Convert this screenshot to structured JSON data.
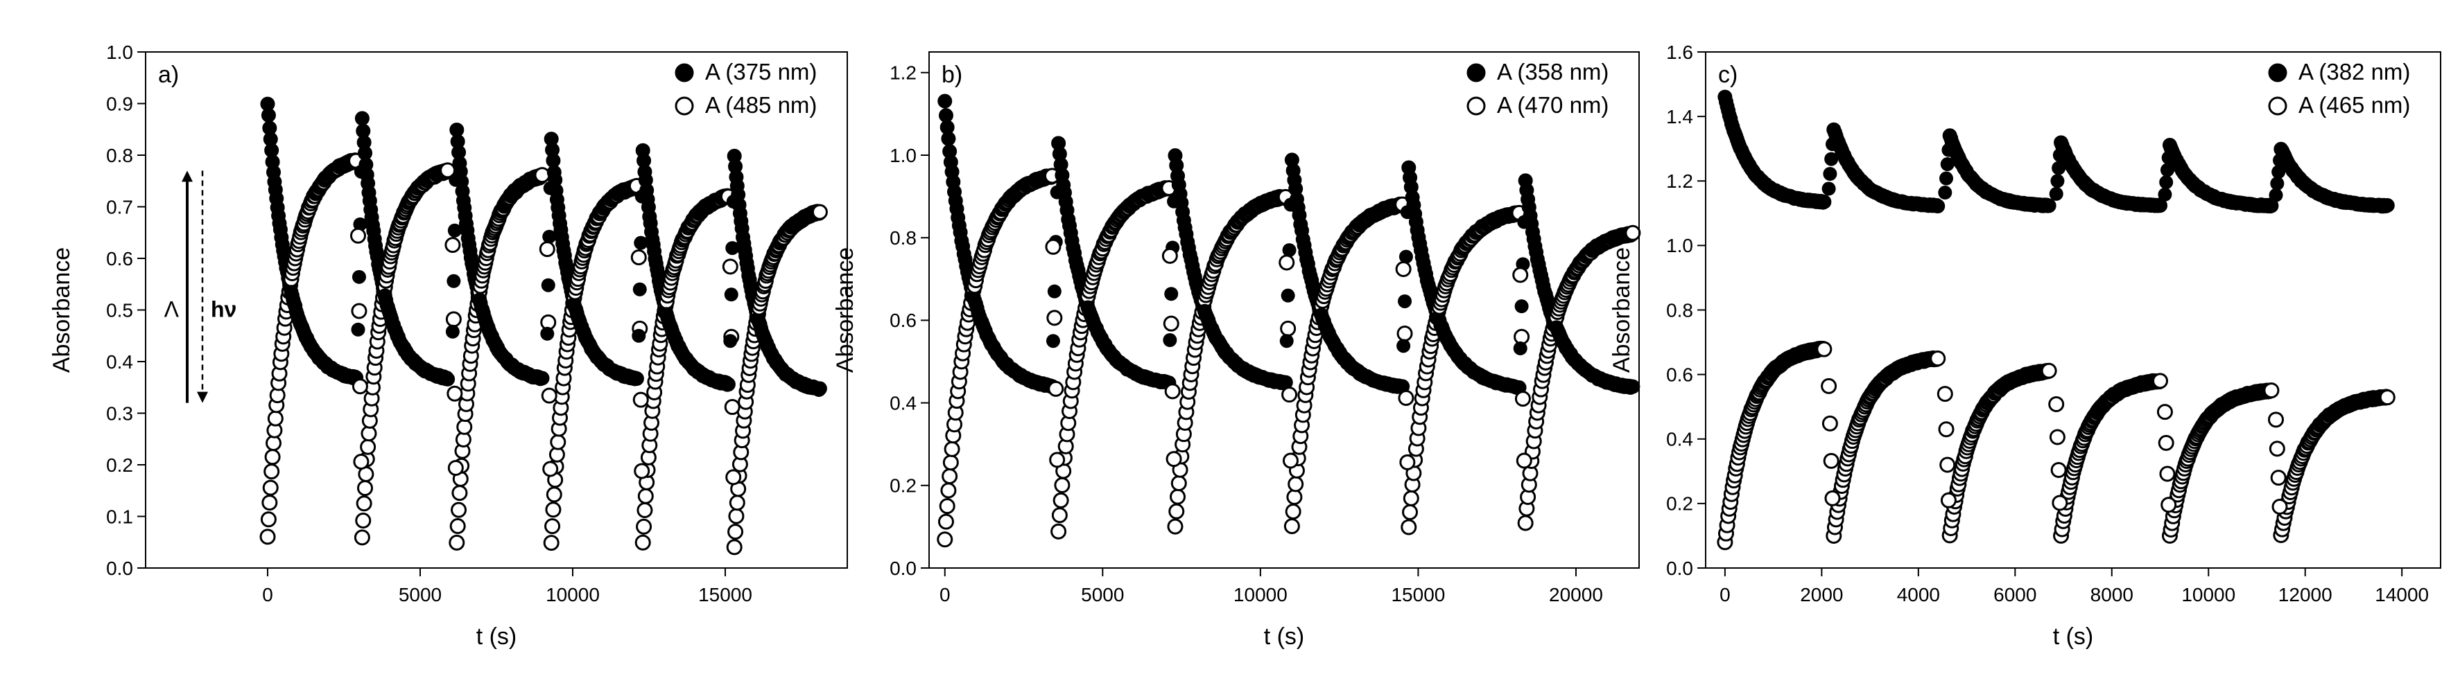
{
  "chart_data": [
    {
      "type": "scatter",
      "panel_label": "a)",
      "xlabel": "t (s)",
      "ylabel": "Absorbance",
      "xlim": [
        -4000,
        19000
      ],
      "ylim": [
        0.0,
        1.0
      ],
      "xticks": [
        0,
        5000,
        10000,
        15000
      ],
      "xtick_labels": [
        "0",
        "5000",
        "10000",
        "15000"
      ],
      "yticks": [
        0.0,
        0.1,
        0.2,
        0.3,
        0.4,
        0.5,
        0.6,
        0.7,
        0.8,
        0.9,
        1.0
      ],
      "ytick_labels": [
        "0.0",
        "0.1",
        "0.2",
        "0.3",
        "0.4",
        "0.5",
        "0.6",
        "0.7",
        "0.8",
        "0.9",
        "1.0"
      ],
      "legend_position": "top-right",
      "legend": [
        {
          "marker": "filled",
          "text": "A (375 nm)"
        },
        {
          "marker": "open",
          "text": "A (485 nm)"
        }
      ],
      "annotation": {
        "left_text": "Λ",
        "right_text": "hν"
      },
      "cycles": [
        {
          "t_start": 0,
          "t_end": 2900,
          "filled_from": 0.9,
          "filled_to": 0.36,
          "open_from": 0.06,
          "open_to": 0.79
        },
        {
          "t_start": 3100,
          "t_end": 5900,
          "filled_from": 0.87,
          "filled_to": 0.36,
          "open_from": 0.06,
          "open_to": 0.77
        },
        {
          "t_start": 6200,
          "t_end": 9000,
          "filled_from": 0.85,
          "filled_to": 0.36,
          "open_from": 0.05,
          "open_to": 0.76
        },
        {
          "t_start": 9300,
          "t_end": 12100,
          "filled_from": 0.83,
          "filled_to": 0.36,
          "open_from": 0.05,
          "open_to": 0.74
        },
        {
          "t_start": 12300,
          "t_end": 15100,
          "filled_from": 0.81,
          "filled_to": 0.35,
          "open_from": 0.05,
          "open_to": 0.72
        },
        {
          "t_start": 15300,
          "t_end": 18100,
          "filled_from": 0.8,
          "filled_to": 0.34,
          "open_from": 0.04,
          "open_to": 0.69
        }
      ]
    },
    {
      "type": "scatter",
      "panel_label": "b)",
      "xlabel": "t (s)",
      "ylabel": "Absorbance",
      "xlim": [
        -500,
        22000
      ],
      "ylim": [
        0.0,
        1.25
      ],
      "xticks": [
        0,
        5000,
        10000,
        15000,
        20000
      ],
      "xtick_labels": [
        "0",
        "5000",
        "10000",
        "15000",
        "20000"
      ],
      "yticks": [
        0.0,
        0.2,
        0.4,
        0.6,
        0.8,
        1.0,
        1.2
      ],
      "ytick_labels": [
        "0.0",
        "0.2",
        "0.4",
        "0.6",
        "0.8",
        "1.0",
        "1.2"
      ],
      "legend_position": "top-right",
      "legend": [
        {
          "marker": "filled",
          "text": "A (358 nm)"
        },
        {
          "marker": "open",
          "text": "A (470 nm)"
        }
      ],
      "cycles": [
        {
          "t_start": 0,
          "t_end": 3400,
          "filled_from": 1.13,
          "filled_to": 0.43,
          "open_from": 0.07,
          "open_to": 0.95
        },
        {
          "t_start": 3600,
          "t_end": 7100,
          "filled_from": 1.03,
          "filled_to": 0.44,
          "open_from": 0.09,
          "open_to": 0.92
        },
        {
          "t_start": 7300,
          "t_end": 10800,
          "filled_from": 1.0,
          "filled_to": 0.44,
          "open_from": 0.1,
          "open_to": 0.9
        },
        {
          "t_start": 11000,
          "t_end": 14500,
          "filled_from": 0.99,
          "filled_to": 0.43,
          "open_from": 0.1,
          "open_to": 0.88
        },
        {
          "t_start": 14700,
          "t_end": 18200,
          "filled_from": 0.97,
          "filled_to": 0.43,
          "open_from": 0.1,
          "open_to": 0.86
        },
        {
          "t_start": 18400,
          "t_end": 21800,
          "filled_from": 0.94,
          "filled_to": 0.43,
          "open_from": 0.11,
          "open_to": 0.81
        }
      ]
    },
    {
      "type": "scatter",
      "panel_label": "c)",
      "xlabel": "t (s)",
      "ylabel": "Absorbance",
      "xlim": [
        -400,
        14800
      ],
      "ylim": [
        0.0,
        1.6
      ],
      "xticks": [
        0,
        2000,
        4000,
        6000,
        8000,
        10000,
        12000,
        14000
      ],
      "xtick_labels": [
        "0",
        "2000",
        "4000",
        "6000",
        "8000",
        "10000",
        "12000",
        "14000"
      ],
      "yticks": [
        0.0,
        0.2,
        0.4,
        0.6,
        0.8,
        1.0,
        1.2,
        1.4,
        1.6
      ],
      "ytick_labels": [
        "0.0",
        "0.2",
        "0.4",
        "0.6",
        "0.8",
        "1.0",
        "1.2",
        "1.4",
        "1.6"
      ],
      "legend_position": "top-right",
      "legend": [
        {
          "marker": "filled",
          "text": "A (382 nm)"
        },
        {
          "marker": "open",
          "text": "A (465 nm)"
        }
      ],
      "cycles": [
        {
          "t_start": 0,
          "t_end": 2050,
          "filled_from": 1.46,
          "filled_to": 1.13,
          "open_from": 0.08,
          "open_to": 0.68
        },
        {
          "t_start": 2250,
          "t_end": 4400,
          "filled_from": 1.36,
          "filled_to": 1.12,
          "open_from": 0.1,
          "open_to": 0.65
        },
        {
          "t_start": 4650,
          "t_end": 6700,
          "filled_from": 1.34,
          "filled_to": 1.12,
          "open_from": 0.1,
          "open_to": 0.61
        },
        {
          "t_start": 6950,
          "t_end": 9000,
          "filled_from": 1.32,
          "filled_to": 1.12,
          "open_from": 0.1,
          "open_to": 0.58
        },
        {
          "t_start": 9200,
          "t_end": 11300,
          "filled_from": 1.31,
          "filled_to": 1.12,
          "open_from": 0.1,
          "open_to": 0.55
        },
        {
          "t_start": 11500,
          "t_end": 13700,
          "filled_from": 1.3,
          "filled_to": 1.12,
          "open_from": 0.1,
          "open_to": 0.53
        }
      ]
    }
  ]
}
